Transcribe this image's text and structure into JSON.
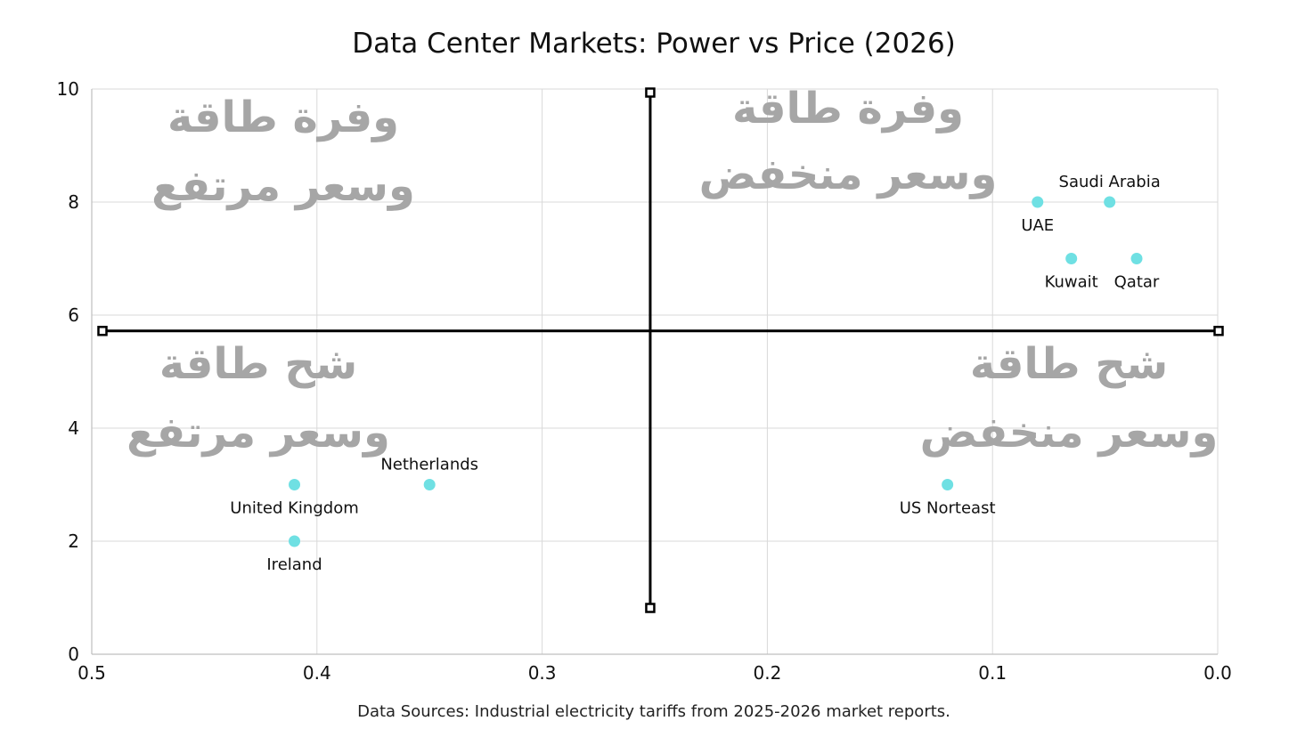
{
  "chart_data": {
    "type": "scatter",
    "title": "Data Center Markets: Power vs Price (2026)",
    "xlim": [
      0.5,
      0.0
    ],
    "ylim": [
      0,
      10
    ],
    "x_reversed": true,
    "x_ticks": [
      0.5,
      0.4,
      0.3,
      0.2,
      0.1,
      0.0
    ],
    "x_tick_labels": [
      "0.5",
      "0.4",
      "0.3",
      "0.2",
      "0.1",
      "0.0"
    ],
    "y_ticks": [
      0,
      2,
      4,
      6,
      8,
      10
    ],
    "y_tick_labels": [
      "0",
      "2",
      "4",
      "6",
      "8",
      "10"
    ],
    "grid": true,
    "point_color": "#6fe0e3",
    "points": [
      {
        "label": "Saudi Arabia",
        "x": 0.048,
        "y": 8,
        "label_pos": "above"
      },
      {
        "label": "UAE",
        "x": 0.08,
        "y": 8,
        "label_pos": "below"
      },
      {
        "label": "Kuwait",
        "x": 0.065,
        "y": 7,
        "label_pos": "below"
      },
      {
        "label": "Qatar",
        "x": 0.036,
        "y": 7,
        "label_pos": "below"
      },
      {
        "label": "Netherlands",
        "x": 0.35,
        "y": 3,
        "label_pos": "above"
      },
      {
        "label": "United Kingdom",
        "x": 0.41,
        "y": 3,
        "label_pos": "below"
      },
      {
        "label": "Ireland",
        "x": 0.41,
        "y": 2,
        "label_pos": "below"
      },
      {
        "label": "US Norteast",
        "x": 0.12,
        "y": 3,
        "label_pos": "below"
      }
    ],
    "divider_x": 0.252,
    "divider_y": 5.72,
    "quadrants": [
      {
        "position": "top-left",
        "lines": [
          "وفرة طاقة",
          "وسعر مرتفع"
        ]
      },
      {
        "position": "top-right",
        "lines": [
          "وفرة طاقة",
          "وسعر منخفض"
        ]
      },
      {
        "position": "bottom-left",
        "lines": [
          "شح طاقة",
          "وسعر مرتفع"
        ]
      },
      {
        "position": "bottom-right",
        "lines": [
          "شح طاقة",
          "وسعر منخفض"
        ]
      }
    ],
    "source_note": "Data Sources: Industrial electricity tariffs from 2025-2026 market reports."
  }
}
